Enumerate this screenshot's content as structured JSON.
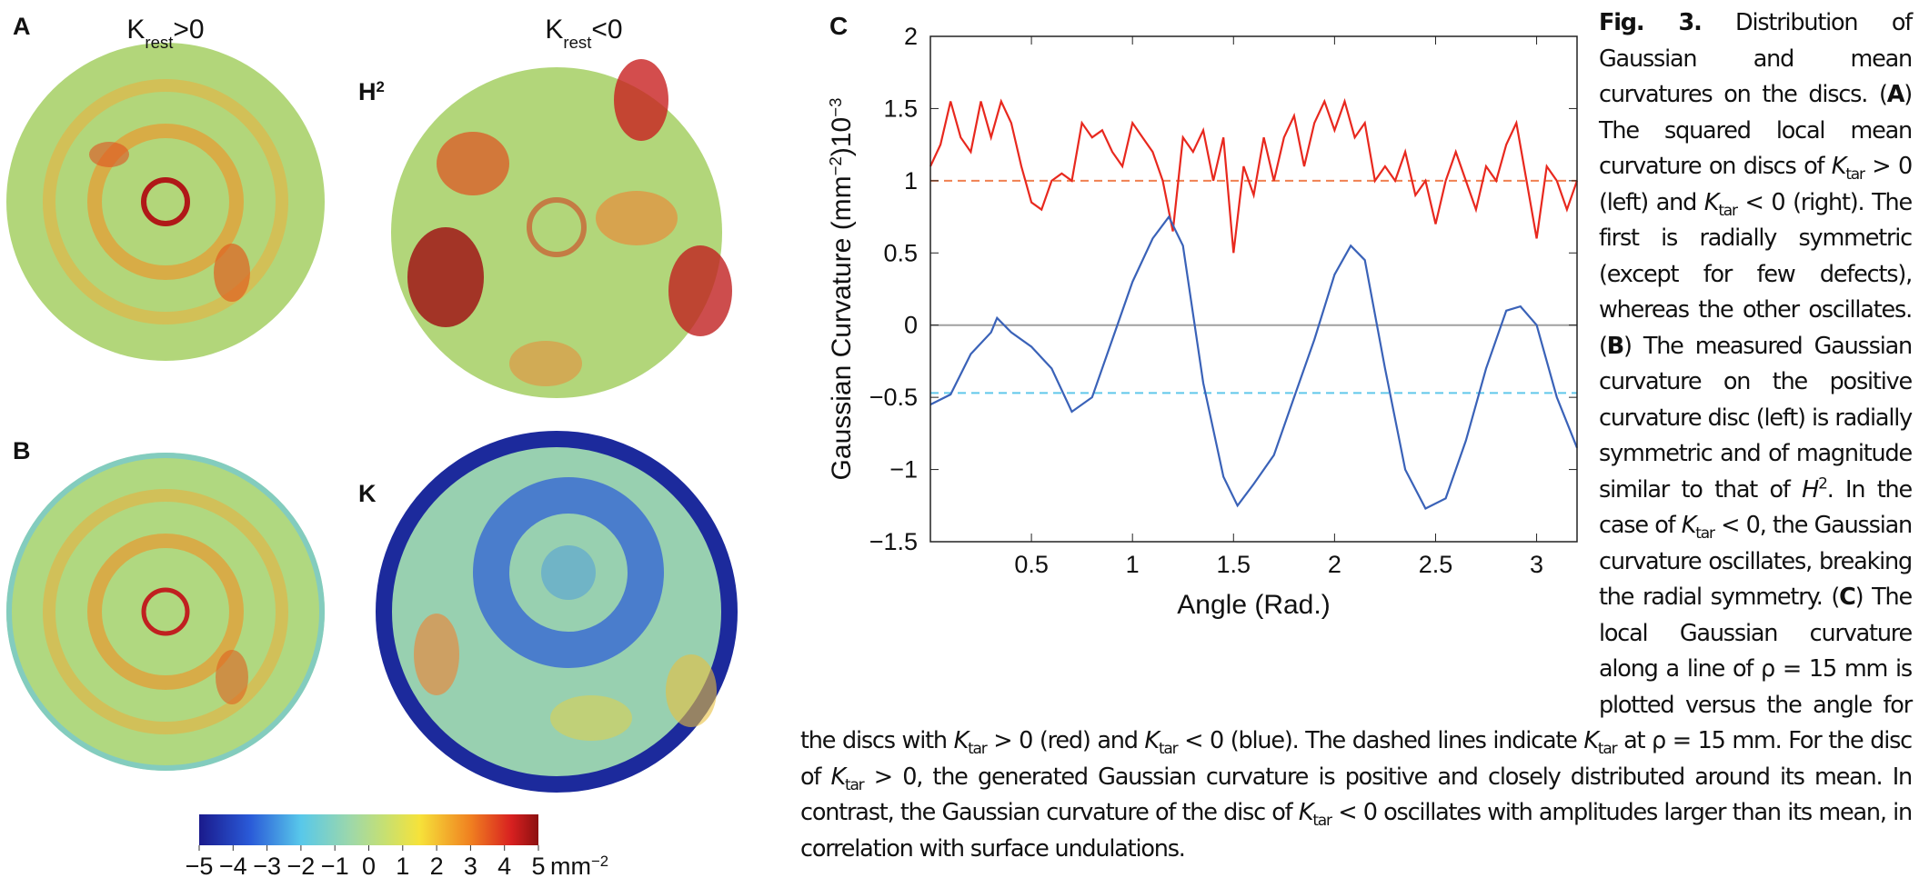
{
  "panels": {
    "a_label": "A",
    "b_label": "B",
    "h2_label": [
      {
        "text": "H"
      },
      {
        "text": "2",
        "style": "sup"
      }
    ],
    "k_label": "K",
    "left_title": [
      {
        "text": "K"
      },
      {
        "text": "rest",
        "style": "sub"
      },
      {
        "text": ">0"
      }
    ],
    "right_title": [
      {
        "text": "K"
      },
      {
        "text": "rest",
        "style": "sub"
      },
      {
        "text": "<0"
      }
    ]
  },
  "colorbar": {
    "clim": [
      -5,
      5
    ],
    "ticks": [
      {
        "value": -5,
        "label": "−5"
      },
      {
        "value": -4,
        "label": "−4"
      },
      {
        "value": -3,
        "label": "−3"
      },
      {
        "value": -2,
        "label": "−2"
      },
      {
        "value": -1,
        "label": "−1"
      },
      0,
      1,
      2,
      3,
      4,
      5
    ],
    "unit": [
      {
        "text": "mm"
      },
      {
        "text": "−2",
        "style": "sup"
      }
    ]
  },
  "chart_data": {
    "type": "line",
    "panel_label": "C",
    "xlabel": "Angle (Rad.)",
    "ylabel": [
      {
        "text": "Gaussian Curvature (mm"
      },
      {
        "text": "−2",
        "style": "sup"
      },
      {
        "text": ")10"
      },
      {
        "text": "−3",
        "style": "sup"
      }
    ],
    "xlim": [
      0,
      3.2
    ],
    "ylim": [
      -1.5,
      2
    ],
    "xticks": [
      0.5,
      1,
      1.5,
      2,
      2.5,
      3
    ],
    "yticks": [
      {
        "value": -1.5,
        "label": "−1.5"
      },
      {
        "value": -1,
        "label": "−1"
      },
      {
        "value": -0.5,
        "label": "−0.5"
      },
      0,
      0.5,
      1,
      1.5,
      2
    ],
    "ref_lines": [
      {
        "value": 0,
        "color": "#a0a0a0",
        "dashed": false
      },
      {
        "value": 1,
        "color": "#f08050",
        "dashed": true
      },
      {
        "value": -0.47,
        "color": "#60c8ea",
        "dashed": true
      }
    ],
    "series": [
      {
        "color": "#e8281e",
        "x": [
          0,
          0.05,
          0.1,
          0.15,
          0.2,
          0.25,
          0.3,
          0.35,
          0.4,
          0.45,
          0.5,
          0.55,
          0.6,
          0.65,
          0.7,
          0.75,
          0.8,
          0.85,
          0.9,
          0.95,
          1.0,
          1.05,
          1.1,
          1.15,
          1.2,
          1.25,
          1.3,
          1.35,
          1.4,
          1.45,
          1.5,
          1.55,
          1.6,
          1.65,
          1.7,
          1.75,
          1.8,
          1.85,
          1.9,
          1.95,
          2.0,
          2.05,
          2.1,
          2.15,
          2.2,
          2.25,
          2.3,
          2.35,
          2.4,
          2.45,
          2.5,
          2.55,
          2.6,
          2.65,
          2.7,
          2.75,
          2.8,
          2.85,
          2.9,
          2.95,
          3.0,
          3.05,
          3.1,
          3.15,
          3.2
        ],
        "values": [
          1.1,
          1.25,
          1.55,
          1.3,
          1.2,
          1.55,
          1.3,
          1.55,
          1.4,
          1.1,
          0.85,
          0.8,
          1.0,
          1.05,
          1.0,
          1.4,
          1.3,
          1.35,
          1.2,
          1.1,
          1.4,
          1.3,
          1.2,
          1.0,
          0.65,
          1.3,
          1.2,
          1.35,
          1.0,
          1.3,
          0.5,
          1.1,
          0.9,
          1.3,
          1.0,
          1.3,
          1.45,
          1.1,
          1.4,
          1.55,
          1.35,
          1.55,
          1.3,
          1.4,
          1.0,
          1.1,
          1.0,
          1.2,
          0.9,
          1.0,
          0.7,
          1.0,
          1.2,
          1.0,
          0.8,
          1.1,
          1.0,
          1.25,
          1.4,
          1.0,
          0.6,
          1.1,
          1.0,
          0.8,
          1.0
        ]
      },
      {
        "color": "#3a62b8",
        "x": [
          0,
          0.1,
          0.2,
          0.3,
          0.33,
          0.4,
          0.5,
          0.6,
          0.7,
          0.8,
          0.9,
          1.0,
          1.1,
          1.18,
          1.25,
          1.35,
          1.45,
          1.52,
          1.6,
          1.7,
          1.8,
          1.9,
          2.0,
          2.08,
          2.15,
          2.25,
          2.35,
          2.45,
          2.55,
          2.65,
          2.75,
          2.85,
          2.92,
          3.0,
          3.1,
          3.2
        ],
        "values": [
          -0.55,
          -0.48,
          -0.2,
          -0.05,
          0.05,
          -0.05,
          -0.15,
          -0.3,
          -0.6,
          -0.5,
          -0.1,
          0.3,
          0.6,
          0.75,
          0.55,
          -0.4,
          -1.05,
          -1.25,
          -1.1,
          -0.9,
          -0.5,
          -0.1,
          0.35,
          0.55,
          0.45,
          -0.3,
          -1.0,
          -1.27,
          -1.2,
          -0.8,
          -0.3,
          0.1,
          0.13,
          0.0,
          -0.5,
          -0.85
        ]
      }
    ]
  },
  "caption": {
    "runs": [
      {
        "text": "Fig. 3.",
        "style": "b"
      },
      {
        "text": " Distribution of Gaussian and mean curvatures on the discs. ("
      },
      {
        "text": "A",
        "style": "b"
      },
      {
        "text": ") The squared local mean curvature on discs of "
      },
      {
        "text": "K",
        "style": "i"
      },
      {
        "text": "tar",
        "style": "sub"
      },
      {
        "text": " > 0 (left) and "
      },
      {
        "text": "K",
        "style": "i"
      },
      {
        "text": "tar",
        "style": "sub"
      },
      {
        "text": " < 0 (right). The first is radially symmetric (except for few defects), whereas the other oscillates. ("
      },
      {
        "text": "B",
        "style": "b"
      },
      {
        "text": ") The measured Gaussian curvature on the positive curvature disc (left) is radially symmetric and of magnitude similar to that of "
      },
      {
        "text": "H",
        "style": "i"
      },
      {
        "text": "2",
        "style": "sup"
      },
      {
        "text": ". In the case of "
      },
      {
        "text": "K",
        "style": "i"
      },
      {
        "text": "tar",
        "style": "sub"
      },
      {
        "text": " < 0, the Gaussian curvature oscillates, breaking the radial symmetry. ("
      },
      {
        "text": "C",
        "style": "b"
      },
      {
        "text": ") The local Gaussian curvature along a line of ρ = 15 mm is plotted versus the angle for the discs with "
      },
      {
        "text": "K",
        "style": "i"
      },
      {
        "text": "tar",
        "style": "sub"
      },
      {
        "text": " > 0 (red) and "
      },
      {
        "text": "K",
        "style": "i"
      },
      {
        "text": "tar",
        "style": "sub"
      },
      {
        "text": " < 0 (blue). The dashed lines indicate "
      },
      {
        "text": "K",
        "style": "i"
      },
      {
        "text": "tar",
        "style": "sub"
      },
      {
        "text": " at ρ = 15 mm. For the disc of "
      },
      {
        "text": "K",
        "style": "i"
      },
      {
        "text": "tar",
        "style": "sub"
      },
      {
        "text": " > 0, the generated Gaussian curvature is positive and closely distributed around its mean. In contrast, the Gaussian curvature of the disc of "
      },
      {
        "text": "K",
        "style": "i"
      },
      {
        "text": "tar",
        "style": "sub"
      },
      {
        "text": " < 0 oscillates with amplitudes larger than its mean, in correlation with surface undulations."
      }
    ]
  }
}
